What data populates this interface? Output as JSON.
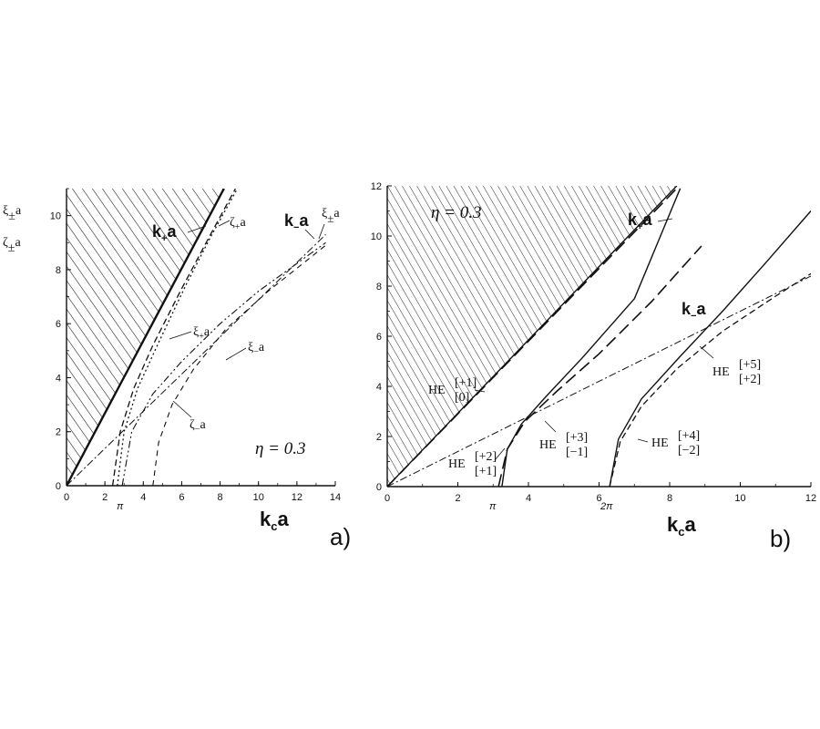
{
  "chart_data": [
    {
      "panel_id": "a)",
      "type": "line",
      "eta_label": "η = 0.3",
      "xlabel": "kca",
      "ylabel": [
        "ξ±a",
        "ζ±a"
      ],
      "xlim": [
        0,
        14
      ],
      "ylim": [
        0,
        11
      ],
      "xticks": [
        "0",
        "2",
        "4",
        "6",
        "8",
        "10",
        "12",
        "14"
      ],
      "x_special_tick": "π",
      "yticks": [
        "0",
        "2",
        "4",
        "6",
        "8",
        "10"
      ],
      "shaded_region": "above k+a line",
      "series": [
        {
          "name": "k+a",
          "style": "solid-thick",
          "x": [
            0,
            8.2
          ],
          "y": [
            0,
            11
          ]
        },
        {
          "name": "ζ+a",
          "style": "dashed",
          "x": [
            2.4,
            2.8,
            3.5,
            4.5,
            6.0,
            7.5,
            8.8
          ],
          "y": [
            0,
            2.0,
            3.6,
            5.2,
            7.3,
            9.3,
            11.0
          ]
        },
        {
          "name": "ξ+a",
          "style": "dotted",
          "x": [
            2.65,
            3.0,
            3.7,
            4.8,
            6.2,
            7.5,
            8.9
          ],
          "y": [
            0,
            2.0,
            3.6,
            5.3,
            7.4,
            9.2,
            11.0
          ]
        },
        {
          "name": "k−a",
          "style": "dash-dot",
          "x": [
            0,
            13.5
          ],
          "y": [
            0,
            9.3
          ]
        },
        {
          "name": "ξ−a",
          "style": "dash-dot-dot",
          "x": [
            2.9,
            3.4,
            4.5,
            6.0,
            8.0,
            10.0,
            13.5
          ],
          "y": [
            0,
            2.0,
            3.4,
            4.6,
            6.0,
            7.2,
            9.0
          ]
        },
        {
          "name": "ζ−a",
          "style": "dashed-fine",
          "x": [
            4.5,
            4.8,
            5.5,
            6.6,
            8.3,
            10.5,
            13.5
          ],
          "y": [
            0,
            1.6,
            3.0,
            4.3,
            5.8,
            7.2,
            8.9
          ]
        }
      ],
      "annotations": [
        "k+a",
        "ζ+a",
        "ξ+a",
        "ξ−a",
        "ζ−a",
        "k−a",
        "ξ±a"
      ],
      "panel_label": "a)"
    },
    {
      "panel_id": "b)",
      "type": "line",
      "eta_label": "η = 0.3",
      "xlabel": "kca",
      "xlim": [
        0,
        12
      ],
      "ylim": [
        0,
        12
      ],
      "xticks": [
        "0",
        "2",
        "4",
        "6",
        "8",
        "10",
        "12"
      ],
      "x_special_ticks": [
        "π",
        "2π"
      ],
      "yticks": [
        "0",
        "2",
        "4",
        "6",
        "8",
        "10",
        "12"
      ],
      "shaded_region": "above k+a line",
      "series": [
        {
          "name": "k+a",
          "style": "solid",
          "x": [
            0,
            8.2
          ],
          "y": [
            0,
            12
          ]
        },
        {
          "name": "HE[+1][0]",
          "style": "long-dash",
          "x": [
            0,
            8.2
          ],
          "y": [
            0,
            11.9
          ]
        },
        {
          "name": "HE[+2][+1]",
          "style": "solid",
          "x": [
            3.25,
            3.4,
            3.8,
            4.5,
            5.5,
            7.0,
            8.3
          ],
          "y": [
            0,
            1.5,
            2.5,
            3.6,
            5.1,
            7.5,
            11.9
          ]
        },
        {
          "name": "HE[+3][−1]",
          "style": "long-dash",
          "x": [
            3.15,
            3.4,
            3.9,
            4.8,
            6.0,
            7.5,
            8.9
          ],
          "y": [
            0,
            1.5,
            2.6,
            3.8,
            5.3,
            7.4,
            9.6
          ]
        },
        {
          "name": "k−a",
          "style": "dash-dot",
          "x": [
            0,
            12
          ],
          "y": [
            0,
            8.4
          ]
        },
        {
          "name": "HE[+4][−2]",
          "style": "dashed",
          "x": [
            6.3,
            6.6,
            7.2,
            8.2,
            9.5,
            11.0,
            12.0
          ],
          "y": [
            0,
            1.8,
            3.2,
            4.7,
            6.2,
            7.6,
            8.5
          ]
        },
        {
          "name": "HE[+5][+2]",
          "style": "solid",
          "x": [
            6.3,
            6.55,
            7.2,
            8.3,
            9.5,
            10.7,
            12.0
          ],
          "y": [
            0,
            1.9,
            3.5,
            5.2,
            7.0,
            8.9,
            11.0
          ]
        }
      ],
      "annotations": [
        "k+a",
        "k−a",
        "HE[+1][0]",
        "HE[+2][+1]",
        "HE[+3][−1]",
        "HE[+4][−2]",
        "HE[+5][+2]"
      ],
      "panel_label": "b)"
    }
  ],
  "text": {
    "a_ylabel_1": "ξ",
    "a_ylabel_1_sub": "±",
    "a_ylabel_1_tail": "a",
    "a_ylabel_2": "ζ",
    "a_ylabel_2_sub": "±",
    "a_ylabel_2_tail": "a",
    "a_eta": "η = 0.3",
    "a_kp": "k",
    "a_kp_sub": "+",
    "a_kp_tail": "a",
    "a_zeta_p": "ζ",
    "a_zeta_p_sub": "+",
    "a_zeta_p_tail": "a",
    "a_xi_p": "ξ",
    "a_xi_p_sub": "+",
    "a_xi_p_tail": "a",
    "a_xi_m": "ξ",
    "a_xi_m_sub": "−",
    "a_xi_m_tail": "a",
    "a_zeta_m": "ζ",
    "a_zeta_m_sub": "−",
    "a_zeta_m_tail": "a",
    "a_km": "k",
    "a_km_sub": "−",
    "a_km_tail": "a",
    "a_xi_pm": "ξ",
    "a_xi_pm_sub": "±",
    "a_xi_pm_tail": "a",
    "a_xlabel": "k",
    "a_xlabel_sub": "c",
    "a_xlabel_tail": "a",
    "a_panel": "a)",
    "a_pi": "π",
    "b_eta": "η = 0.3",
    "b_kp": "k",
    "b_kp_sub": "+",
    "b_kp_tail": "a",
    "b_km": "k",
    "b_km_sub": "−",
    "b_km_tail": "a",
    "b_he": "HE",
    "b_he1_sup": "[+1]",
    "b_he1_sub": "[0]",
    "b_he2_sup": "[+2]",
    "b_he2_sub": "[+1]",
    "b_he3_sup": "[+3]",
    "b_he3_sub": "[−1]",
    "b_he4_sup": "[+4]",
    "b_he4_sub": "[−2]",
    "b_he5_sup": "[+5]",
    "b_he5_sub": "[+2]",
    "b_xlabel": "k",
    "b_xlabel_sub": "c",
    "b_xlabel_tail": "a",
    "b_panel": "b)",
    "b_pi": "π",
    "b_2pi": "2π"
  }
}
